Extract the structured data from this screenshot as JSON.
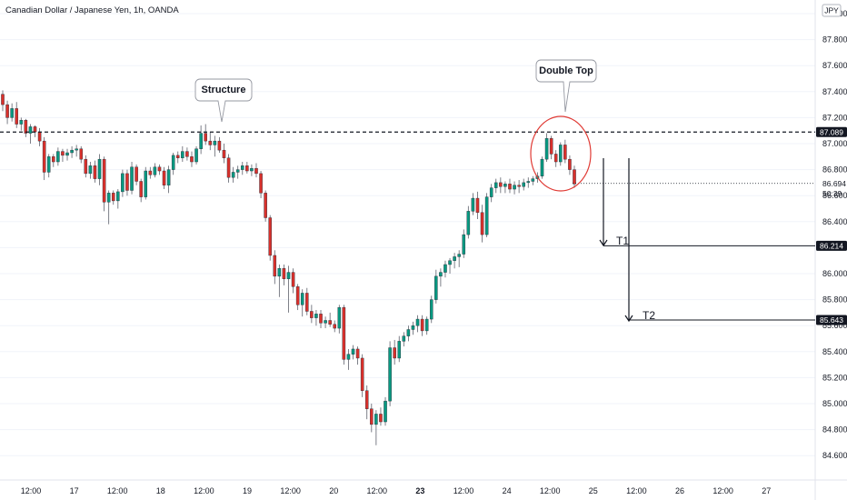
{
  "header": {
    "title": "Canadian Dollar / Japanese Yen, 1h, OANDA",
    "currency": "JPY"
  },
  "chart_data": {
    "type": "candlestick",
    "symbol": "CADJPY",
    "interval": "1h",
    "ylim": [
      84.55,
      88.02
    ],
    "y_ticks": [
      "84.600",
      "84.800",
      "85.000",
      "85.200",
      "85.400",
      "85.600",
      "85.800",
      "86.000",
      "86.200",
      "86.400",
      "86.600",
      "86.800",
      "87.000",
      "87.200",
      "87.400",
      "87.600",
      "87.800",
      "88.000"
    ],
    "x_ticks": [
      "12:00",
      "17",
      "12:00",
      "18",
      "12:00",
      "19",
      "12:00",
      "20",
      "12:00",
      "23",
      "12:00",
      "24",
      "12:00",
      "25",
      "12:00",
      "26",
      "12:00",
      "27"
    ],
    "x_tick_bold": [
      "23"
    ],
    "bull_color": "#089981",
    "bear_color": "#d9302b",
    "candles": [
      [
        87.38,
        87.41,
        87.25,
        87.3
      ],
      [
        87.3,
        87.33,
        87.15,
        87.2
      ],
      [
        87.2,
        87.31,
        87.17,
        87.27
      ],
      [
        87.27,
        87.32,
        87.12,
        87.15
      ],
      [
        87.15,
        87.2,
        87.1,
        87.18
      ],
      [
        87.18,
        87.19,
        87.05,
        87.08
      ],
      [
        87.08,
        87.15,
        87.0,
        87.13
      ],
      [
        87.13,
        87.14,
        87.05,
        87.09
      ],
      [
        87.09,
        87.12,
        86.98,
        87.02
      ],
      [
        87.02,
        87.05,
        86.72,
        86.78
      ],
      [
        86.78,
        86.92,
        86.74,
        86.9
      ],
      [
        86.9,
        86.92,
        86.82,
        86.86
      ],
      [
        86.86,
        86.97,
        86.83,
        86.94
      ],
      [
        86.94,
        86.96,
        86.86,
        86.91
      ],
      [
        86.91,
        86.96,
        86.87,
        86.93
      ],
      [
        86.93,
        86.98,
        86.89,
        86.95
      ],
      [
        86.95,
        86.99,
        86.9,
        86.96
      ],
      [
        86.96,
        86.98,
        86.85,
        86.88
      ],
      [
        86.88,
        86.91,
        86.74,
        86.77
      ],
      [
        86.77,
        86.86,
        86.73,
        86.83
      ],
      [
        86.83,
        86.87,
        86.7,
        86.73
      ],
      [
        86.73,
        86.92,
        86.68,
        86.88
      ],
      [
        86.88,
        86.9,
        86.48,
        86.55
      ],
      [
        86.55,
        86.64,
        86.38,
        86.62
      ],
      [
        86.62,
        86.64,
        86.53,
        86.56
      ],
      [
        86.56,
        86.65,
        86.5,
        86.63
      ],
      [
        86.63,
        86.8,
        86.59,
        86.77
      ],
      [
        86.77,
        86.8,
        86.6,
        86.64
      ],
      [
        86.64,
        86.86,
        86.61,
        86.82
      ],
      [
        86.82,
        86.84,
        86.68,
        86.71
      ],
      [
        86.71,
        86.73,
        86.55,
        86.59
      ],
      [
        86.59,
        86.82,
        86.57,
        86.79
      ],
      [
        86.79,
        86.82,
        86.73,
        86.76
      ],
      [
        86.76,
        86.85,
        86.74,
        86.82
      ],
      [
        86.82,
        86.84,
        86.76,
        86.79
      ],
      [
        86.79,
        86.82,
        86.65,
        86.68
      ],
      [
        86.68,
        86.83,
        86.62,
        86.8
      ],
      [
        86.8,
        86.93,
        86.76,
        86.91
      ],
      [
        86.91,
        86.94,
        86.85,
        86.89
      ],
      [
        86.89,
        86.98,
        86.86,
        86.94
      ],
      [
        86.94,
        86.97,
        86.87,
        86.9
      ],
      [
        86.9,
        86.94,
        86.82,
        86.86
      ],
      [
        86.86,
        86.98,
        86.84,
        86.96
      ],
      [
        86.96,
        87.14,
        86.92,
        87.08
      ],
      [
        87.08,
        87.15,
        86.99,
        87.02
      ],
      [
        87.02,
        87.09,
        86.95,
        86.99
      ],
      [
        86.99,
        87.06,
        86.9,
        87.02
      ],
      [
        87.02,
        87.05,
        86.93,
        86.95
      ],
      [
        86.95,
        87.0,
        86.85,
        86.89
      ],
      [
        86.89,
        86.92,
        86.7,
        86.74
      ],
      [
        86.74,
        86.82,
        86.7,
        86.78
      ],
      [
        86.78,
        86.83,
        86.73,
        86.8
      ],
      [
        86.8,
        86.86,
        86.76,
        86.83
      ],
      [
        86.83,
        86.86,
        86.77,
        86.79
      ],
      [
        86.79,
        86.84,
        86.75,
        86.81
      ],
      [
        86.81,
        86.85,
        86.74,
        86.77
      ],
      [
        86.77,
        86.79,
        86.58,
        86.62
      ],
      [
        86.62,
        86.64,
        86.4,
        86.43
      ],
      [
        86.43,
        86.45,
        86.1,
        86.14
      ],
      [
        86.14,
        86.18,
        85.92,
        85.98
      ],
      [
        85.98,
        86.07,
        85.82,
        86.04
      ],
      [
        86.04,
        86.07,
        85.91,
        85.96
      ],
      [
        85.96,
        86.06,
        85.7,
        86.01
      ],
      [
        86.01,
        86.04,
        85.85,
        85.9
      ],
      [
        85.9,
        85.92,
        85.72,
        85.76
      ],
      [
        85.76,
        85.88,
        85.67,
        85.85
      ],
      [
        85.85,
        85.89,
        85.68,
        85.71
      ],
      [
        85.71,
        85.76,
        85.62,
        85.66
      ],
      [
        85.66,
        85.72,
        85.6,
        85.69
      ],
      [
        85.69,
        85.72,
        85.58,
        85.62
      ],
      [
        85.62,
        85.67,
        85.58,
        85.64
      ],
      [
        85.64,
        85.7,
        85.59,
        85.61
      ],
      [
        85.61,
        85.64,
        85.55,
        85.58
      ],
      [
        85.58,
        85.76,
        85.54,
        85.74
      ],
      [
        85.74,
        85.76,
        85.3,
        85.34
      ],
      [
        85.34,
        85.42,
        85.26,
        85.38
      ],
      [
        85.38,
        85.45,
        85.34,
        85.42
      ],
      [
        85.42,
        85.44,
        85.3,
        85.35
      ],
      [
        85.35,
        85.38,
        85.05,
        85.1
      ],
      [
        85.1,
        85.14,
        84.88,
        84.96
      ],
      [
        84.96,
        85.0,
        84.78,
        84.84
      ],
      [
        84.84,
        84.95,
        84.68,
        84.92
      ],
      [
        84.92,
        84.97,
        84.83,
        84.86
      ],
      [
        84.86,
        85.05,
        84.83,
        85.02
      ],
      [
        85.02,
        85.48,
        84.98,
        85.43
      ],
      [
        85.43,
        85.49,
        85.3,
        85.35
      ],
      [
        85.35,
        85.52,
        85.32,
        85.48
      ],
      [
        85.48,
        85.55,
        85.44,
        85.52
      ],
      [
        85.52,
        85.6,
        85.48,
        85.57
      ],
      [
        85.57,
        85.63,
        85.53,
        85.6
      ],
      [
        85.6,
        85.68,
        85.55,
        85.65
      ],
      [
        85.65,
        85.68,
        85.52,
        85.56
      ],
      [
        85.56,
        85.67,
        85.53,
        85.65
      ],
      [
        85.65,
        85.83,
        85.62,
        85.8
      ],
      [
        85.8,
        86.03,
        85.77,
        85.98
      ],
      [
        85.98,
        86.04,
        85.9,
        86.01
      ],
      [
        86.01,
        86.1,
        85.97,
        86.07
      ],
      [
        86.07,
        86.12,
        86.0,
        86.1
      ],
      [
        86.1,
        86.16,
        86.04,
        86.13
      ],
      [
        86.13,
        86.18,
        86.05,
        86.15
      ],
      [
        86.15,
        86.34,
        86.12,
        86.3
      ],
      [
        86.3,
        86.52,
        86.27,
        86.48
      ],
      [
        86.48,
        86.62,
        86.45,
        86.58
      ],
      [
        86.58,
        86.63,
        86.42,
        86.47
      ],
      [
        86.47,
        86.53,
        86.24,
        86.3
      ],
      [
        86.3,
        86.62,
        86.28,
        86.59
      ],
      [
        86.59,
        86.69,
        86.55,
        86.66
      ],
      [
        86.66,
        86.73,
        86.62,
        86.7
      ],
      [
        86.7,
        86.74,
        86.62,
        86.67
      ],
      [
        86.67,
        86.71,
        86.62,
        86.69
      ],
      [
        86.69,
        86.73,
        86.62,
        86.65
      ],
      [
        86.65,
        86.71,
        86.61,
        86.68
      ],
      [
        86.68,
        86.72,
        86.62,
        86.67
      ],
      [
        86.67,
        86.73,
        86.64,
        86.7
      ],
      [
        86.7,
        86.74,
        86.66,
        86.71
      ],
      [
        86.71,
        86.75,
        86.68,
        86.73
      ],
      [
        86.73,
        86.78,
        86.7,
        86.75
      ],
      [
        86.75,
        86.9,
        86.73,
        86.88
      ],
      [
        86.88,
        87.08,
        86.86,
        87.04
      ],
      [
        87.04,
        87.06,
        86.88,
        86.92
      ],
      [
        86.92,
        86.95,
        86.82,
        86.86
      ],
      [
        86.86,
        87.01,
        86.83,
        86.99
      ],
      [
        86.99,
        87.03,
        86.85,
        86.88
      ],
      [
        86.88,
        86.91,
        86.76,
        86.8
      ],
      [
        86.8,
        86.83,
        86.66,
        86.69
      ]
    ],
    "resistance_level": "87.089",
    "last_price": "86.694",
    "countdown": "50:39",
    "annotations": {
      "structure": "Structure",
      "double_top": "Double Top",
      "t1_label": "T1",
      "t1_price": "86.214",
      "t2_label": "T2",
      "t2_price": "85.643"
    },
    "colors": {
      "blue_tag": "#2962ff",
      "black_tag": "#131722",
      "circle": "#e03b35",
      "grid": "#f0f3fa"
    }
  }
}
